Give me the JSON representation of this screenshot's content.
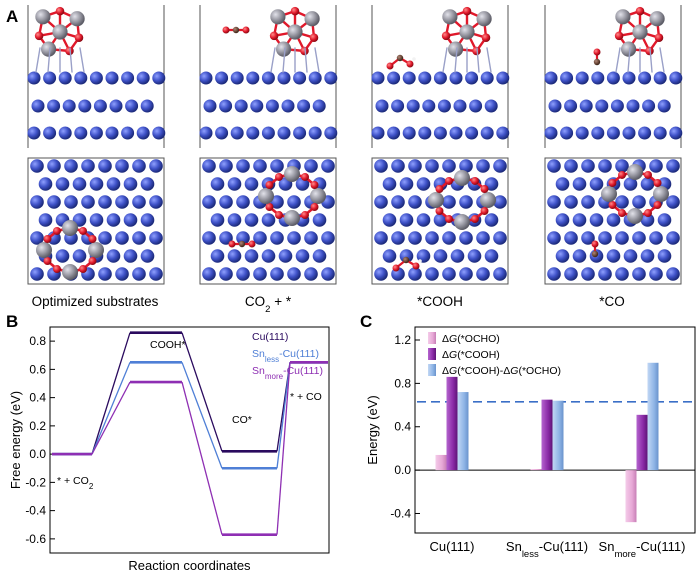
{
  "panels": {
    "a": {
      "label": "A",
      "captions": [
        {
          "parts": [
            {
              "t": "Optimized substrates"
            }
          ]
        },
        {
          "parts": [
            {
              "t": "CO"
            },
            {
              "t": "2",
              "sub": true
            },
            {
              "t": " + *"
            }
          ]
        },
        {
          "parts": [
            {
              "t": "*COOH"
            }
          ]
        },
        {
          "parts": [
            {
              "t": "*CO"
            }
          ]
        }
      ]
    },
    "b": {
      "label": "B"
    },
    "c": {
      "label": "C"
    }
  },
  "colors": {
    "cu_atom": "#3f52c8",
    "sn_atom": "#9a9aa4",
    "o_atom": "#e0182a",
    "c_atom": "#6e4a3a",
    "cu111": "#2a0a5e",
    "sn_less": "#4f7fd6",
    "sn_more": "#8e2fb3",
    "bar_ocho": "#e7a8d6",
    "bar_cooh": "#8a2aa6",
    "bar_diff": "#8fb5e6",
    "dashed": "#3b6fc7"
  },
  "chart_data": [
    {
      "type": "line",
      "subtype": "free-energy-step-diagram",
      "xlabel": "Reaction coordinates",
      "ylabel": "Free energy (eV)",
      "ylim": [
        -0.7,
        0.9
      ],
      "yticks": [
        "-0.6",
        "-0.4",
        "-0.2",
        "0.0",
        "0.2",
        "0.4",
        "0.6",
        "0.8"
      ],
      "steps": [
        "* + CO2",
        "COOH*",
        "CO*",
        "* + CO"
      ],
      "step_labels": [
        {
          "parts": [
            {
              "t": "* + CO"
            },
            {
              "t": "2",
              "sub": true
            }
          ]
        },
        {
          "parts": [
            {
              "t": "COOH*"
            }
          ]
        },
        {
          "parts": [
            {
              "t": "CO*"
            }
          ]
        },
        {
          "parts": [
            {
              "t": "* + CO"
            }
          ]
        }
      ],
      "series": [
        {
          "name": "Cu(111)",
          "name_parts": [
            {
              "t": "Cu(111)"
            }
          ],
          "color": "#2a0a5e",
          "values": [
            0.0,
            0.86,
            0.02,
            0.65
          ]
        },
        {
          "name": "Snless-Cu(111)",
          "name_parts": [
            {
              "t": "Sn"
            },
            {
              "t": "less",
              "sub": true
            },
            {
              "t": "-Cu(111)"
            }
          ],
          "color": "#4f7fd6",
          "values": [
            0.0,
            0.65,
            -0.1,
            0.65
          ]
        },
        {
          "name": "Snmore-Cu(111)",
          "name_parts": [
            {
              "t": "Sn"
            },
            {
              "t": "more",
              "sub": true
            },
            {
              "t": "-Cu(111)"
            }
          ],
          "color": "#8e2fb3",
          "values": [
            0.0,
            0.51,
            -0.57,
            0.65
          ]
        }
      ],
      "legend": "top-right"
    },
    {
      "type": "bar",
      "ylabel": "Energy (eV)",
      "ylim": [
        -0.58,
        1.32
      ],
      "yticks": [
        "-0.4",
        "0.0",
        "0.4",
        "0.8",
        "1.2"
      ],
      "categories": [
        "Cu(111)",
        "Snless-Cu(111)",
        "Snmore-Cu(111)"
      ],
      "category_labels": [
        {
          "parts": [
            {
              "t": "Cu(111)"
            }
          ]
        },
        {
          "parts": [
            {
              "t": "Sn"
            },
            {
              "t": "less",
              "sub": true
            },
            {
              "t": "-Cu(111)"
            }
          ]
        },
        {
          "parts": [
            {
              "t": "Sn"
            },
            {
              "t": "more",
              "sub": true
            },
            {
              "t": "-Cu(111)"
            }
          ]
        }
      ],
      "series": [
        {
          "name": "ΔG(*OCHO)",
          "color": "#e7a8d6",
          "values": [
            0.14,
            0.01,
            -0.48
          ]
        },
        {
          "name": "ΔG(*COOH)",
          "color": "#8a2aa6",
          "values": [
            0.86,
            0.65,
            0.51
          ]
        },
        {
          "name": "ΔG(*COOH)-ΔG(*OCHO)",
          "color": "#8fb5e6",
          "values": [
            0.72,
            0.64,
            0.99
          ]
        }
      ],
      "legend_parts": [
        [
          {
            "t": "Δ"
          },
          {
            "t": "G",
            "i": true
          },
          {
            "t": "(*OCHO)"
          }
        ],
        [
          {
            "t": "Δ"
          },
          {
            "t": "G",
            "i": true
          },
          {
            "t": "(*COOH)"
          }
        ],
        [
          {
            "t": "Δ"
          },
          {
            "t": "G",
            "i": true
          },
          {
            "t": "(*COOH)-Δ"
          },
          {
            "t": "G",
            "i": true
          },
          {
            "t": "(*OCHO)"
          }
        ]
      ],
      "reference_line": 0.63,
      "legend": "top-left"
    }
  ]
}
